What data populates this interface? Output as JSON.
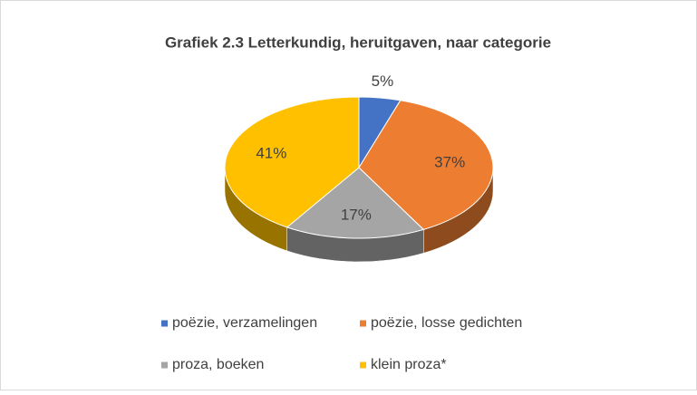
{
  "chart_data": {
    "type": "pie",
    "title": "Grafiek 2.3 Letterkundig, heruitgaven, naar categorie",
    "categories": [
      "poëzie, verzamelingen",
      "poëzie, losse gedichten",
      "proza, boeken",
      "klein proza*"
    ],
    "values": [
      5,
      37,
      17,
      41
    ],
    "value_labels": [
      "5%",
      "37%",
      "17%",
      "41%"
    ],
    "colors": [
      "#4472c4",
      "#ed7d31",
      "#a5a5a5",
      "#ffc000"
    ],
    "legend": "bottom"
  }
}
